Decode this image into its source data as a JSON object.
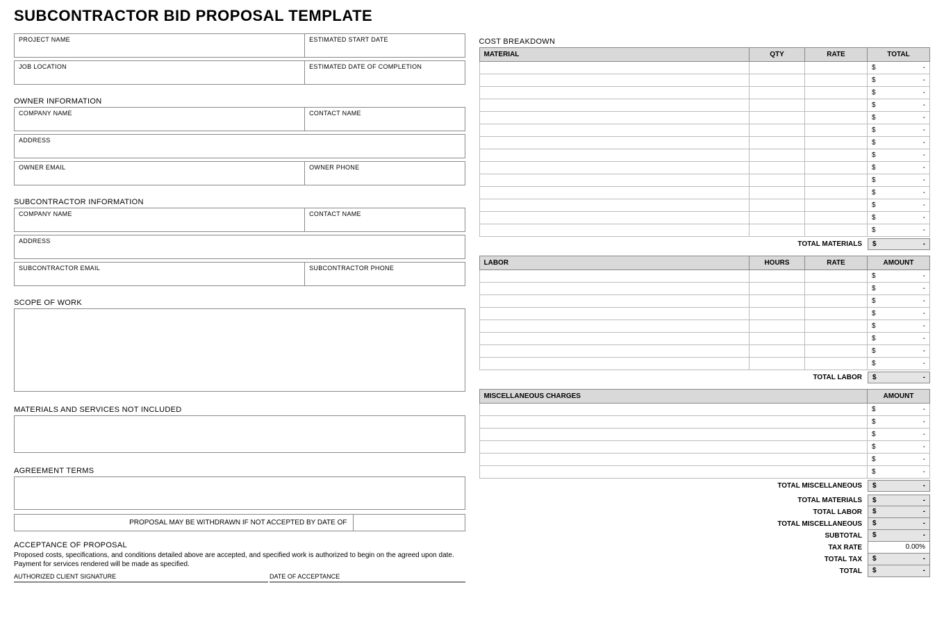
{
  "title": "SUBCONTRACTOR BID PROPOSAL TEMPLATE",
  "left": {
    "project_name_label": "PROJECT NAME",
    "start_date_label": "ESTIMATED START DATE",
    "job_location_label": "JOB LOCATION",
    "completion_label": "ESTIMATED DATE OF COMPLETION",
    "owner_heading": "OWNER INFORMATION",
    "sub_heading": "SUBCONTRACTOR INFORMATION",
    "company_label": "COMPANY NAME",
    "contact_label": "CONTACT NAME",
    "address_label": "ADDRESS",
    "owner_email_label": "OWNER EMAIL",
    "owner_phone_label": "OWNER PHONE",
    "sub_email_label": "SUBCONTRACTOR EMAIL",
    "sub_phone_label": "SUBCONTRACTOR PHONE",
    "scope_heading": "SCOPE OF WORK",
    "not_included_heading": "MATERIALS AND SERVICES NOT INCLUDED",
    "agreement_heading": "AGREEMENT TERMS",
    "withdraw_label": "PROPOSAL MAY BE WITHDRAWN IF NOT ACCEPTED BY DATE OF",
    "acceptance_heading": "ACCEPTANCE OF PROPOSAL",
    "acceptance_text": "Proposed costs, specifications, and conditions detailed above are accepted, and specified work is authorized to begin on the agreed upon date.  Payment for services rendered will be made as specified.",
    "sig_label": "AUTHORIZED CLIENT SIGNATURE",
    "date_accept_label": "DATE OF ACCEPTANCE"
  },
  "cost": {
    "heading": "COST BREAKDOWN",
    "material_hdr": "MATERIAL",
    "qty_hdr": "QTY",
    "rate_hdr": "RATE",
    "total_hdr": "TOTAL",
    "labor_hdr": "LABOR",
    "hours_hdr": "HOURS",
    "amount_hdr": "AMOUNT",
    "misc_hdr": "MISCELLANEOUS CHARGES",
    "sym": "$",
    "dash": "-",
    "material_rows": 14,
    "labor_rows": 8,
    "misc_rows": 6,
    "totals": {
      "materials_label": "TOTAL MATERIALS",
      "labor_label": "TOTAL LABOR",
      "misc_label": "TOTAL MISCELLANEOUS",
      "subtotal_label": "SUBTOTAL",
      "taxrate_label": "TAX RATE",
      "taxrate_value": "0.00%",
      "totaltax_label": "TOTAL TAX",
      "total_label": "TOTAL"
    }
  },
  "colors": {
    "header_bg": "#d9d9d9",
    "total_bg": "#e5e5e5",
    "sig_bg": "#dae3ed",
    "border": "#888888"
  }
}
